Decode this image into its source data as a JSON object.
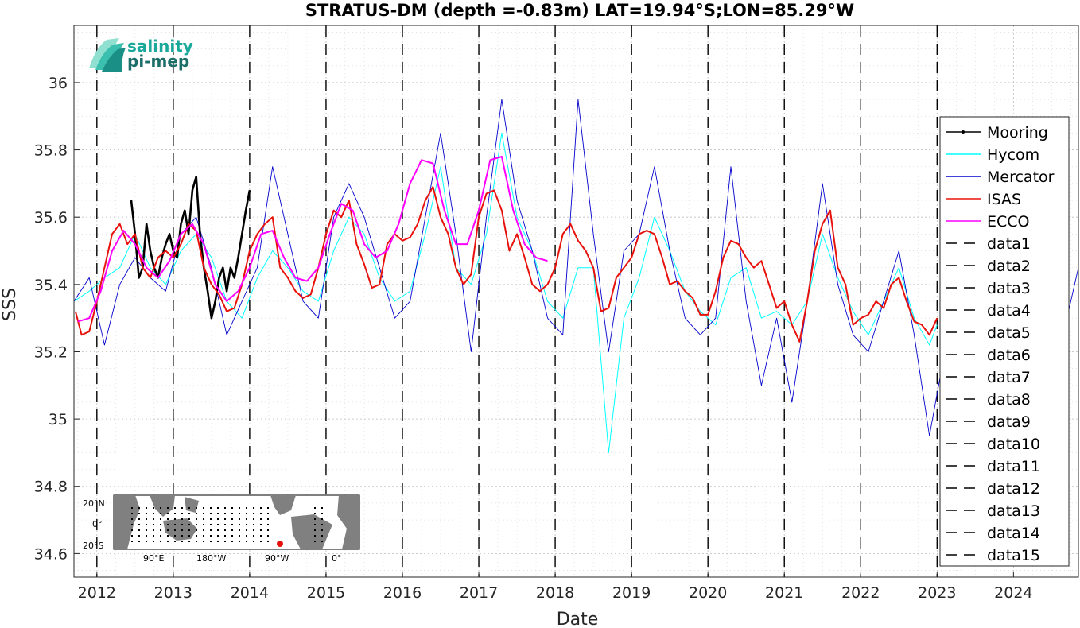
{
  "chart_data": {
    "type": "line",
    "title": "STRATUS-DM (depth =-0.83m) LAT=19.94°S;LON=85.29°W",
    "xlabel": "Date",
    "ylabel": "SSS",
    "xlim": [
      2011.7,
      2024.85
    ],
    "ylim": [
      34.53,
      36.17
    ],
    "x_ticks": [
      2012,
      2013,
      2014,
      2015,
      2016,
      2017,
      2018,
      2019,
      2020,
      2021,
      2022,
      2023,
      2024
    ],
    "x_tick_labels": [
      "2012",
      "2013",
      "2014",
      "2015",
      "2016",
      "2017",
      "2018",
      "2019",
      "2020",
      "2021",
      "2022",
      "2023",
      "2024"
    ],
    "y_ticks": [
      34.6,
      34.8,
      35,
      35.2,
      35.4,
      35.6,
      35.8,
      36
    ],
    "y_tick_labels": [
      "34.6",
      "34.8",
      "35",
      "35.2",
      "35.4",
      "35.6",
      "35.8",
      "36"
    ],
    "grid": true,
    "legend_position": "right",
    "vertical_lines_dates": [
      2012,
      2013,
      2014,
      2015,
      2016,
      2017,
      2018,
      2019,
      2020,
      2021,
      2022,
      2023
    ],
    "series": [
      {
        "name": "Mooring",
        "color": "#000000",
        "x": [
          2012.45,
          2012.5,
          2012.55,
          2012.6,
          2012.65,
          2012.7,
          2012.75,
          2012.8,
          2012.85,
          2012.9,
          2012.95,
          2013.0,
          2013.05,
          2013.1,
          2013.15,
          2013.2,
          2013.25,
          2013.3,
          2013.35,
          2013.4,
          2013.45,
          2013.5,
          2013.55,
          2013.6,
          2013.65,
          2013.7,
          2013.75,
          2013.8,
          2013.85,
          2013.9,
          2013.95,
          2014.0
        ],
        "y": [
          35.65,
          35.55,
          35.42,
          35.45,
          35.58,
          35.5,
          35.45,
          35.42,
          35.48,
          35.52,
          35.55,
          35.5,
          35.48,
          35.58,
          35.62,
          35.55,
          35.68,
          35.72,
          35.55,
          35.45,
          35.38,
          35.3,
          35.35,
          35.42,
          35.45,
          35.38,
          35.45,
          35.42,
          35.48,
          35.55,
          35.62,
          35.68
        ]
      },
      {
        "name": "Hycom",
        "color": "#00ffff",
        "x": [
          2011.7,
          2011.9,
          2012.1,
          2012.3,
          2012.5,
          2012.7,
          2012.9,
          2013.1,
          2013.3,
          2013.5,
          2013.7,
          2013.9,
          2014.1,
          2014.3,
          2014.5,
          2014.7,
          2014.9,
          2015.1,
          2015.3,
          2015.5,
          2015.7,
          2015.9,
          2016.1,
          2016.3,
          2016.5,
          2016.7,
          2016.9,
          2017.1,
          2017.3,
          2017.5,
          2017.7,
          2017.9,
          2018.1,
          2018.3,
          2018.5,
          2018.7,
          2018.9,
          2019.1,
          2019.3,
          2019.5,
          2019.7,
          2019.9,
          2020.1,
          2020.3,
          2020.5,
          2020.7,
          2020.9,
          2021.1,
          2021.3,
          2021.5,
          2021.7,
          2021.9,
          2022.1,
          2022.3,
          2022.5,
          2022.7,
          2022.9,
          2023.0
        ],
        "y": [
          35.35,
          35.38,
          35.42,
          35.45,
          35.55,
          35.45,
          35.4,
          35.5,
          35.55,
          35.48,
          35.35,
          35.3,
          35.42,
          35.5,
          35.45,
          35.38,
          35.35,
          35.5,
          35.6,
          35.55,
          35.42,
          35.35,
          35.38,
          35.55,
          35.75,
          35.45,
          35.4,
          35.55,
          35.85,
          35.6,
          35.5,
          35.35,
          35.3,
          35.45,
          35.45,
          34.9,
          35.3,
          35.42,
          35.6,
          35.5,
          35.38,
          35.32,
          35.28,
          35.42,
          35.45,
          35.3,
          35.32,
          35.28,
          35.35,
          35.55,
          35.42,
          35.32,
          35.25,
          35.35,
          35.45,
          35.3,
          35.22,
          35.28
        ]
      },
      {
        "name": "Mercator",
        "color": "#0000cd",
        "x": [
          2011.7,
          2011.9,
          2012.1,
          2012.3,
          2012.5,
          2012.7,
          2012.9,
          2013.1,
          2013.3,
          2013.5,
          2013.7,
          2013.9,
          2014.1,
          2014.3,
          2014.5,
          2014.7,
          2014.9,
          2015.1,
          2015.3,
          2015.5,
          2015.7,
          2015.9,
          2016.1,
          2016.3,
          2016.5,
          2016.7,
          2016.9,
          2017.1,
          2017.3,
          2017.5,
          2017.7,
          2017.9,
          2018.1,
          2018.3,
          2018.5,
          2018.7,
          2018.9,
          2019.1,
          2019.3,
          2019.5,
          2019.7,
          2019.9,
          2020.1,
          2020.3,
          2020.5,
          2020.7,
          2020.9,
          2021.1,
          2021.3,
          2021.5,
          2021.7,
          2021.9,
          2022.1,
          2022.3,
          2022.5,
          2022.7,
          2022.9,
          2023.1,
          2023.3,
          2023.5,
          2023.7,
          2023.9,
          2024.1,
          2024.3,
          2024.5,
          2024.7,
          2024.85
        ],
        "y": [
          35.35,
          35.42,
          35.22,
          35.4,
          35.48,
          35.42,
          35.38,
          35.55,
          35.6,
          35.45,
          35.25,
          35.35,
          35.45,
          35.75,
          35.55,
          35.35,
          35.3,
          35.6,
          35.7,
          35.6,
          35.45,
          35.3,
          35.35,
          35.6,
          35.85,
          35.55,
          35.2,
          35.6,
          35.95,
          35.65,
          35.5,
          35.3,
          35.25,
          35.95,
          35.55,
          35.2,
          35.5,
          35.55,
          35.75,
          35.5,
          35.3,
          35.25,
          35.3,
          35.75,
          35.35,
          35.1,
          35.3,
          35.05,
          35.35,
          35.7,
          35.4,
          35.25,
          35.2,
          35.35,
          35.5,
          35.25,
          34.95,
          35.2,
          35.3,
          35.35,
          35.25,
          35.2,
          35.3,
          35.35,
          35.25,
          35.3,
          35.45
        ]
      },
      {
        "name": "ISAS",
        "color": "#e8120c",
        "x": [
          2011.72,
          2011.8,
          2011.9,
          2012.0,
          2012.1,
          2012.2,
          2012.3,
          2012.4,
          2012.5,
          2012.6,
          2012.7,
          2012.8,
          2012.9,
          2013.0,
          2013.1,
          2013.2,
          2013.3,
          2013.4,
          2013.5,
          2013.6,
          2013.7,
          2013.8,
          2013.9,
          2014.0,
          2014.1,
          2014.2,
          2014.3,
          2014.4,
          2014.5,
          2014.6,
          2014.7,
          2014.8,
          2014.9,
          2015.0,
          2015.1,
          2015.2,
          2015.3,
          2015.4,
          2015.5,
          2015.6,
          2015.7,
          2015.8,
          2015.9,
          2016.0,
          2016.1,
          2016.2,
          2016.3,
          2016.4,
          2016.5,
          2016.6,
          2016.7,
          2016.8,
          2016.9,
          2017.0,
          2017.1,
          2017.2,
          2017.3,
          2017.4,
          2017.5,
          2017.6,
          2017.7,
          2017.8,
          2017.9,
          2018.0,
          2018.1,
          2018.2,
          2018.3,
          2018.4,
          2018.5,
          2018.6,
          2018.7,
          2018.8,
          2018.9,
          2019.0,
          2019.1,
          2019.2,
          2019.3,
          2019.4,
          2019.5,
          2019.6,
          2019.7,
          2019.8,
          2019.9,
          2020.0,
          2020.1,
          2020.2,
          2020.3,
          2020.4,
          2020.5,
          2020.6,
          2020.7,
          2020.8,
          2020.9,
          2021.0,
          2021.1,
          2021.2,
          2021.3,
          2021.4,
          2021.5,
          2021.6,
          2021.7,
          2021.8,
          2021.9,
          2022.0,
          2022.1,
          2022.2,
          2022.3,
          2022.4,
          2022.5,
          2022.6,
          2022.7,
          2022.8,
          2022.9,
          2023.0
        ],
        "y": [
          35.32,
          35.25,
          35.26,
          35.35,
          35.45,
          35.55,
          35.58,
          35.52,
          35.55,
          35.45,
          35.42,
          35.48,
          35.5,
          35.48,
          35.52,
          35.58,
          35.56,
          35.45,
          35.4,
          35.37,
          35.32,
          35.33,
          35.4,
          35.5,
          35.55,
          35.58,
          35.6,
          35.45,
          35.42,
          35.38,
          35.36,
          35.37,
          35.45,
          35.55,
          35.62,
          35.6,
          35.65,
          35.52,
          35.46,
          35.39,
          35.4,
          35.52,
          35.55,
          35.53,
          35.54,
          35.58,
          35.65,
          35.69,
          35.6,
          35.55,
          35.45,
          35.4,
          35.43,
          35.6,
          35.67,
          35.68,
          35.62,
          35.5,
          35.55,
          35.48,
          35.4,
          35.38,
          35.4,
          35.45,
          35.55,
          35.58,
          35.53,
          35.5,
          35.45,
          35.32,
          35.33,
          35.42,
          35.45,
          35.48,
          35.55,
          35.56,
          35.55,
          35.48,
          35.4,
          35.41,
          35.38,
          35.36,
          35.31,
          35.31,
          35.38,
          35.48,
          35.53,
          35.52,
          35.48,
          35.45,
          35.47,
          35.4,
          35.33,
          35.35,
          35.28,
          35.23,
          35.35,
          35.5,
          35.58,
          35.62,
          35.45,
          35.4,
          35.28,
          35.3,
          35.31,
          35.35,
          35.33,
          35.4,
          35.42,
          35.35,
          35.29,
          35.28,
          35.25,
          35.3
        ]
      },
      {
        "name": "ECCO",
        "color": "#ff00ff",
        "x": [
          2011.75,
          2011.9,
          2012.05,
          2012.2,
          2012.35,
          2012.5,
          2012.65,
          2012.8,
          2012.95,
          2013.1,
          2013.25,
          2013.4,
          2013.55,
          2013.7,
          2013.85,
          2014.0,
          2014.15,
          2014.3,
          2014.45,
          2014.6,
          2014.75,
          2014.9,
          2015.05,
          2015.2,
          2015.35,
          2015.5,
          2015.65,
          2015.8,
          2015.95,
          2016.1,
          2016.25,
          2016.4,
          2016.55,
          2016.7,
          2016.85,
          2017.0,
          2017.15,
          2017.3,
          2017.45,
          2017.6,
          2017.75,
          2017.9
        ],
        "y": [
          35.29,
          35.3,
          35.38,
          35.5,
          35.56,
          35.52,
          35.45,
          35.42,
          35.47,
          35.55,
          35.58,
          35.52,
          35.4,
          35.35,
          35.38,
          35.45,
          35.55,
          35.56,
          35.48,
          35.42,
          35.41,
          35.45,
          35.55,
          35.64,
          35.62,
          35.52,
          35.48,
          35.5,
          35.58,
          35.7,
          35.77,
          35.76,
          35.62,
          35.52,
          35.52,
          35.62,
          35.77,
          35.78,
          35.62,
          35.52,
          35.48,
          35.47
        ]
      },
      {
        "name": "data1",
        "color": "#000000",
        "x": [
          2012,
          2012
        ],
        "y": [
          34.53,
          36.17
        ]
      }
    ],
    "legend_entries": [
      {
        "label": "Mooring",
        "color": "#000000",
        "style": "solid",
        "marker": true
      },
      {
        "label": "Hycom",
        "color": "#00ffff",
        "style": "solid"
      },
      {
        "label": "Mercator",
        "color": "#0000cd",
        "style": "solid"
      },
      {
        "label": "ISAS",
        "color": "#e8120c",
        "style": "solid"
      },
      {
        "label": "ECCO",
        "color": "#ff00ff",
        "style": "solid"
      },
      {
        "label": "data1",
        "color": "#000000",
        "style": "dashed"
      },
      {
        "label": "data2",
        "color": "#000000",
        "style": "dashed"
      },
      {
        "label": "data3",
        "color": "#000000",
        "style": "dashed"
      },
      {
        "label": "data4",
        "color": "#000000",
        "style": "dashed"
      },
      {
        "label": "data5",
        "color": "#000000",
        "style": "dashed"
      },
      {
        "label": "data6",
        "color": "#000000",
        "style": "dashed"
      },
      {
        "label": "data7",
        "color": "#000000",
        "style": "dashed"
      },
      {
        "label": "data8",
        "color": "#000000",
        "style": "dashed"
      },
      {
        "label": "data9",
        "color": "#000000",
        "style": "dashed"
      },
      {
        "label": "data10",
        "color": "#000000",
        "style": "dashed"
      },
      {
        "label": "data11",
        "color": "#000000",
        "style": "dashed"
      },
      {
        "label": "data12",
        "color": "#000000",
        "style": "dashed"
      },
      {
        "label": "data13",
        "color": "#000000",
        "style": "dashed"
      },
      {
        "label": "data14",
        "color": "#000000",
        "style": "dashed"
      },
      {
        "label": "data15",
        "color": "#000000",
        "style": "dashed"
      }
    ]
  },
  "logo": {
    "line1": "salinity",
    "line2": "pi-mep",
    "color1": "#19a89a",
    "color2": "#1c6e68"
  },
  "inset_map": {
    "lat_labels": [
      "20°N",
      "0°",
      "20°S"
    ],
    "lon_labels": [
      "90°E",
      "180°W",
      "90°W",
      "0°"
    ],
    "land_color": "#808080",
    "ocean_color": "#ffffff",
    "marker_color": "#e8120c"
  }
}
